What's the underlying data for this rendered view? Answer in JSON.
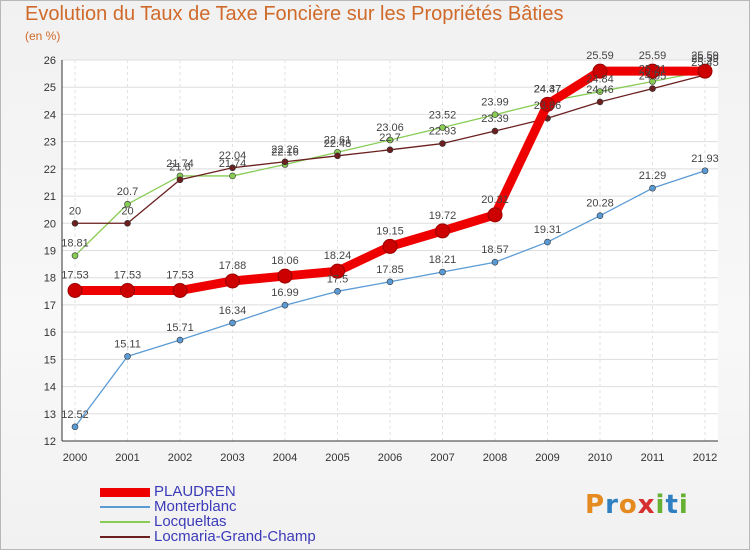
{
  "chart_data": {
    "type": "line",
    "title": "Evolution du Taux de Taxe Foncière sur les Propriétés Bâties",
    "subtitle": "(en %)",
    "x": [
      "2000",
      "2001",
      "2002",
      "2003",
      "2004",
      "2005",
      "2006",
      "2007",
      "2008",
      "2009",
      "2010",
      "2011",
      "2012"
    ],
    "ylim": [
      12,
      26
    ],
    "yticks": [
      12,
      13,
      14,
      15,
      16,
      17,
      18,
      19,
      20,
      21,
      22,
      23,
      24,
      25,
      26
    ],
    "legend_position": "bottom-left",
    "series": [
      {
        "name": "PLAUDREN",
        "color": "#ee0000",
        "values": [
          17.53,
          17.53,
          17.53,
          17.88,
          18.06,
          18.24,
          19.15,
          19.72,
          20.31,
          24.37,
          25.59,
          25.59,
          25.59
        ]
      },
      {
        "name": "Monterblanc",
        "color": "#5b9bd5",
        "values": [
          12.52,
          15.11,
          15.71,
          16.34,
          16.99,
          17.5,
          17.85,
          18.21,
          18.57,
          19.31,
          20.28,
          21.29,
          21.93
        ]
      },
      {
        "name": "Locqueltas",
        "color": "#88cc55",
        "values": [
          18.81,
          20.7,
          21.74,
          21.74,
          22.16,
          22.61,
          23.06,
          23.52,
          23.99,
          24.47,
          24.84,
          25.21,
          25.59
        ]
      },
      {
        "name": "Locmaria-Grand-Champ",
        "color": "#6b1f1f",
        "values": [
          20,
          20,
          21.6,
          22.04,
          22.26,
          22.48,
          22.7,
          22.93,
          23.39,
          23.86,
          24.46,
          24.95,
          25.45
        ]
      }
    ]
  },
  "logo": {
    "text": "Proxiti",
    "colors": [
      "#e58a1f",
      "#2f7fc1",
      "#e58a1f",
      "#d62f2f",
      "#66b032",
      "#2f7fc1",
      "#66b032"
    ]
  }
}
